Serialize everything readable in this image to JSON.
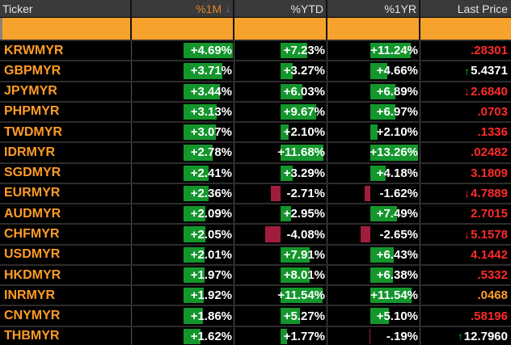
{
  "header": {
    "columns": [
      "Ticker",
      "%1M",
      "%YTD",
      "%1YR",
      "Last Price"
    ],
    "sorted_column": "%1M",
    "sort_direction": "descending"
  },
  "icons": {
    "sort_descending": "↓",
    "price_up_arrow": "↑",
    "price_down_arrow": "↓"
  },
  "colors": {
    "positive_bar": "#13962c",
    "negative_bar": "#a01e3c",
    "price_red": "#ff2b2b",
    "price_white": "#ffffff",
    "price_amber": "#ffa028",
    "arrow_up_green": "#00c823",
    "arrow_down_red": "#ff2b2b",
    "ticker_amber": "#ff9c26",
    "filter_row_orange": "#f8a22e",
    "header_bg": "#3a3a3a"
  },
  "rows": [
    {
      "ticker": "KRWMYR",
      "m1": "+4.69%",
      "ytd": "+7.23%",
      "yr1": "+11.24%",
      "last": ".28301",
      "last_color": "price_red",
      "last_arrow": ""
    },
    {
      "ticker": "GBPMYR",
      "m1": "+3.71%",
      "ytd": "+3.27%",
      "yr1": "+4.66%",
      "last": "5.4371",
      "last_color": "price_white",
      "last_arrow": "up"
    },
    {
      "ticker": "JPYMYR",
      "m1": "+3.44%",
      "ytd": "+6.03%",
      "yr1": "+6.89%",
      "last": "2.6840",
      "last_color": "price_red",
      "last_arrow": "down"
    },
    {
      "ticker": "PHPMYR",
      "m1": "+3.13%",
      "ytd": "+9.67%",
      "yr1": "+6.97%",
      "last": ".0703",
      "last_color": "price_red",
      "last_arrow": ""
    },
    {
      "ticker": "TWDMYR",
      "m1": "+3.07%",
      "ytd": "+2.10%",
      "yr1": "+2.10%",
      "last": ".1336",
      "last_color": "price_red",
      "last_arrow": ""
    },
    {
      "ticker": "IDRMYR",
      "m1": "+2.78%",
      "ytd": "+11.68%",
      "yr1": "+13.26%",
      "last": ".02482",
      "last_color": "price_red",
      "last_arrow": ""
    },
    {
      "ticker": "SGDMYR",
      "m1": "+2.41%",
      "ytd": "+3.29%",
      "yr1": "+4.18%",
      "last": "3.1809",
      "last_color": "price_red",
      "last_arrow": ""
    },
    {
      "ticker": "EURMYR",
      "m1": "+2.36%",
      "ytd": "-2.71%",
      "yr1": "-1.62%",
      "last": "4.7889",
      "last_color": "price_red",
      "last_arrow": "down"
    },
    {
      "ticker": "AUDMYR",
      "m1": "+2.09%",
      "ytd": "+2.95%",
      "yr1": "+7.49%",
      "last": "2.7015",
      "last_color": "price_red",
      "last_arrow": ""
    },
    {
      "ticker": "CHFMYR",
      "m1": "+2.05%",
      "ytd": "-4.08%",
      "yr1": "-2.65%",
      "last": "5.1578",
      "last_color": "price_red",
      "last_arrow": "down"
    },
    {
      "ticker": "USDMYR",
      "m1": "+2.01%",
      "ytd": "+7.91%",
      "yr1": "+6.43%",
      "last": "4.1442",
      "last_color": "price_red",
      "last_arrow": ""
    },
    {
      "ticker": "HKDMYR",
      "m1": "+1.97%",
      "ytd": "+8.01%",
      "yr1": "+6.38%",
      "last": ".5332",
      "last_color": "price_red",
      "last_arrow": ""
    },
    {
      "ticker": "INRMYR",
      "m1": "+1.92%",
      "ytd": "+11.54%",
      "yr1": "+11.54%",
      "last": ".0468",
      "last_color": "price_amber",
      "last_arrow": ""
    },
    {
      "ticker": "CNYMYR",
      "m1": "+1.86%",
      "ytd": "+5.27%",
      "yr1": "+5.10%",
      "last": ".58196",
      "last_color": "price_red",
      "last_arrow": ""
    },
    {
      "ticker": "THBMYR",
      "m1": "+1.62%",
      "ytd": "+1.77%",
      "yr1": "-.19%",
      "last": "12.7960",
      "last_color": "price_white",
      "last_arrow": "up"
    }
  ]
}
